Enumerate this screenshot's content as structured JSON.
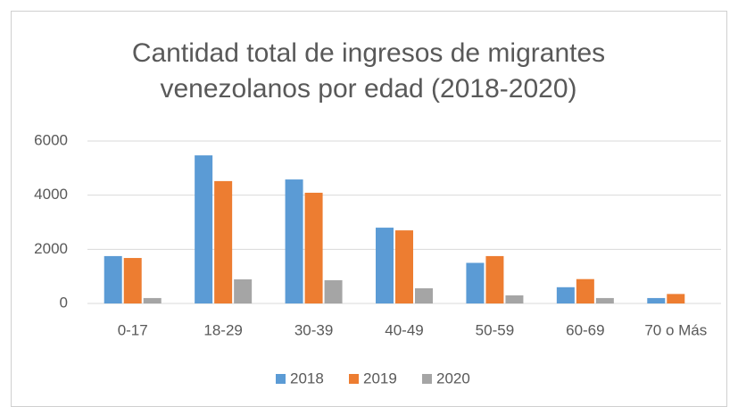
{
  "chart_data": {
    "type": "bar",
    "title": "Cantidad total de ingresos de migrantes venezolanos por edad (2018-2020)",
    "categories": [
      "0-17",
      "18-29",
      "30-39",
      "40-49",
      "50-59",
      "60-69",
      "70 o Más"
    ],
    "series": [
      {
        "name": "2018",
        "color": "#5b9bd5",
        "values": [
          1750,
          5470,
          4580,
          2800,
          1500,
          600,
          200
        ]
      },
      {
        "name": "2019",
        "color": "#ed7d31",
        "values": [
          1680,
          4520,
          4090,
          2700,
          1750,
          900,
          350
        ]
      },
      {
        "name": "2020",
        "color": "#a5a5a5",
        "values": [
          200,
          890,
          860,
          560,
          300,
          200,
          0
        ]
      }
    ],
    "ylim": [
      0,
      6000
    ],
    "yticks": [
      0,
      2000,
      4000,
      6000
    ],
    "grid": true,
    "legend": "bottom"
  }
}
